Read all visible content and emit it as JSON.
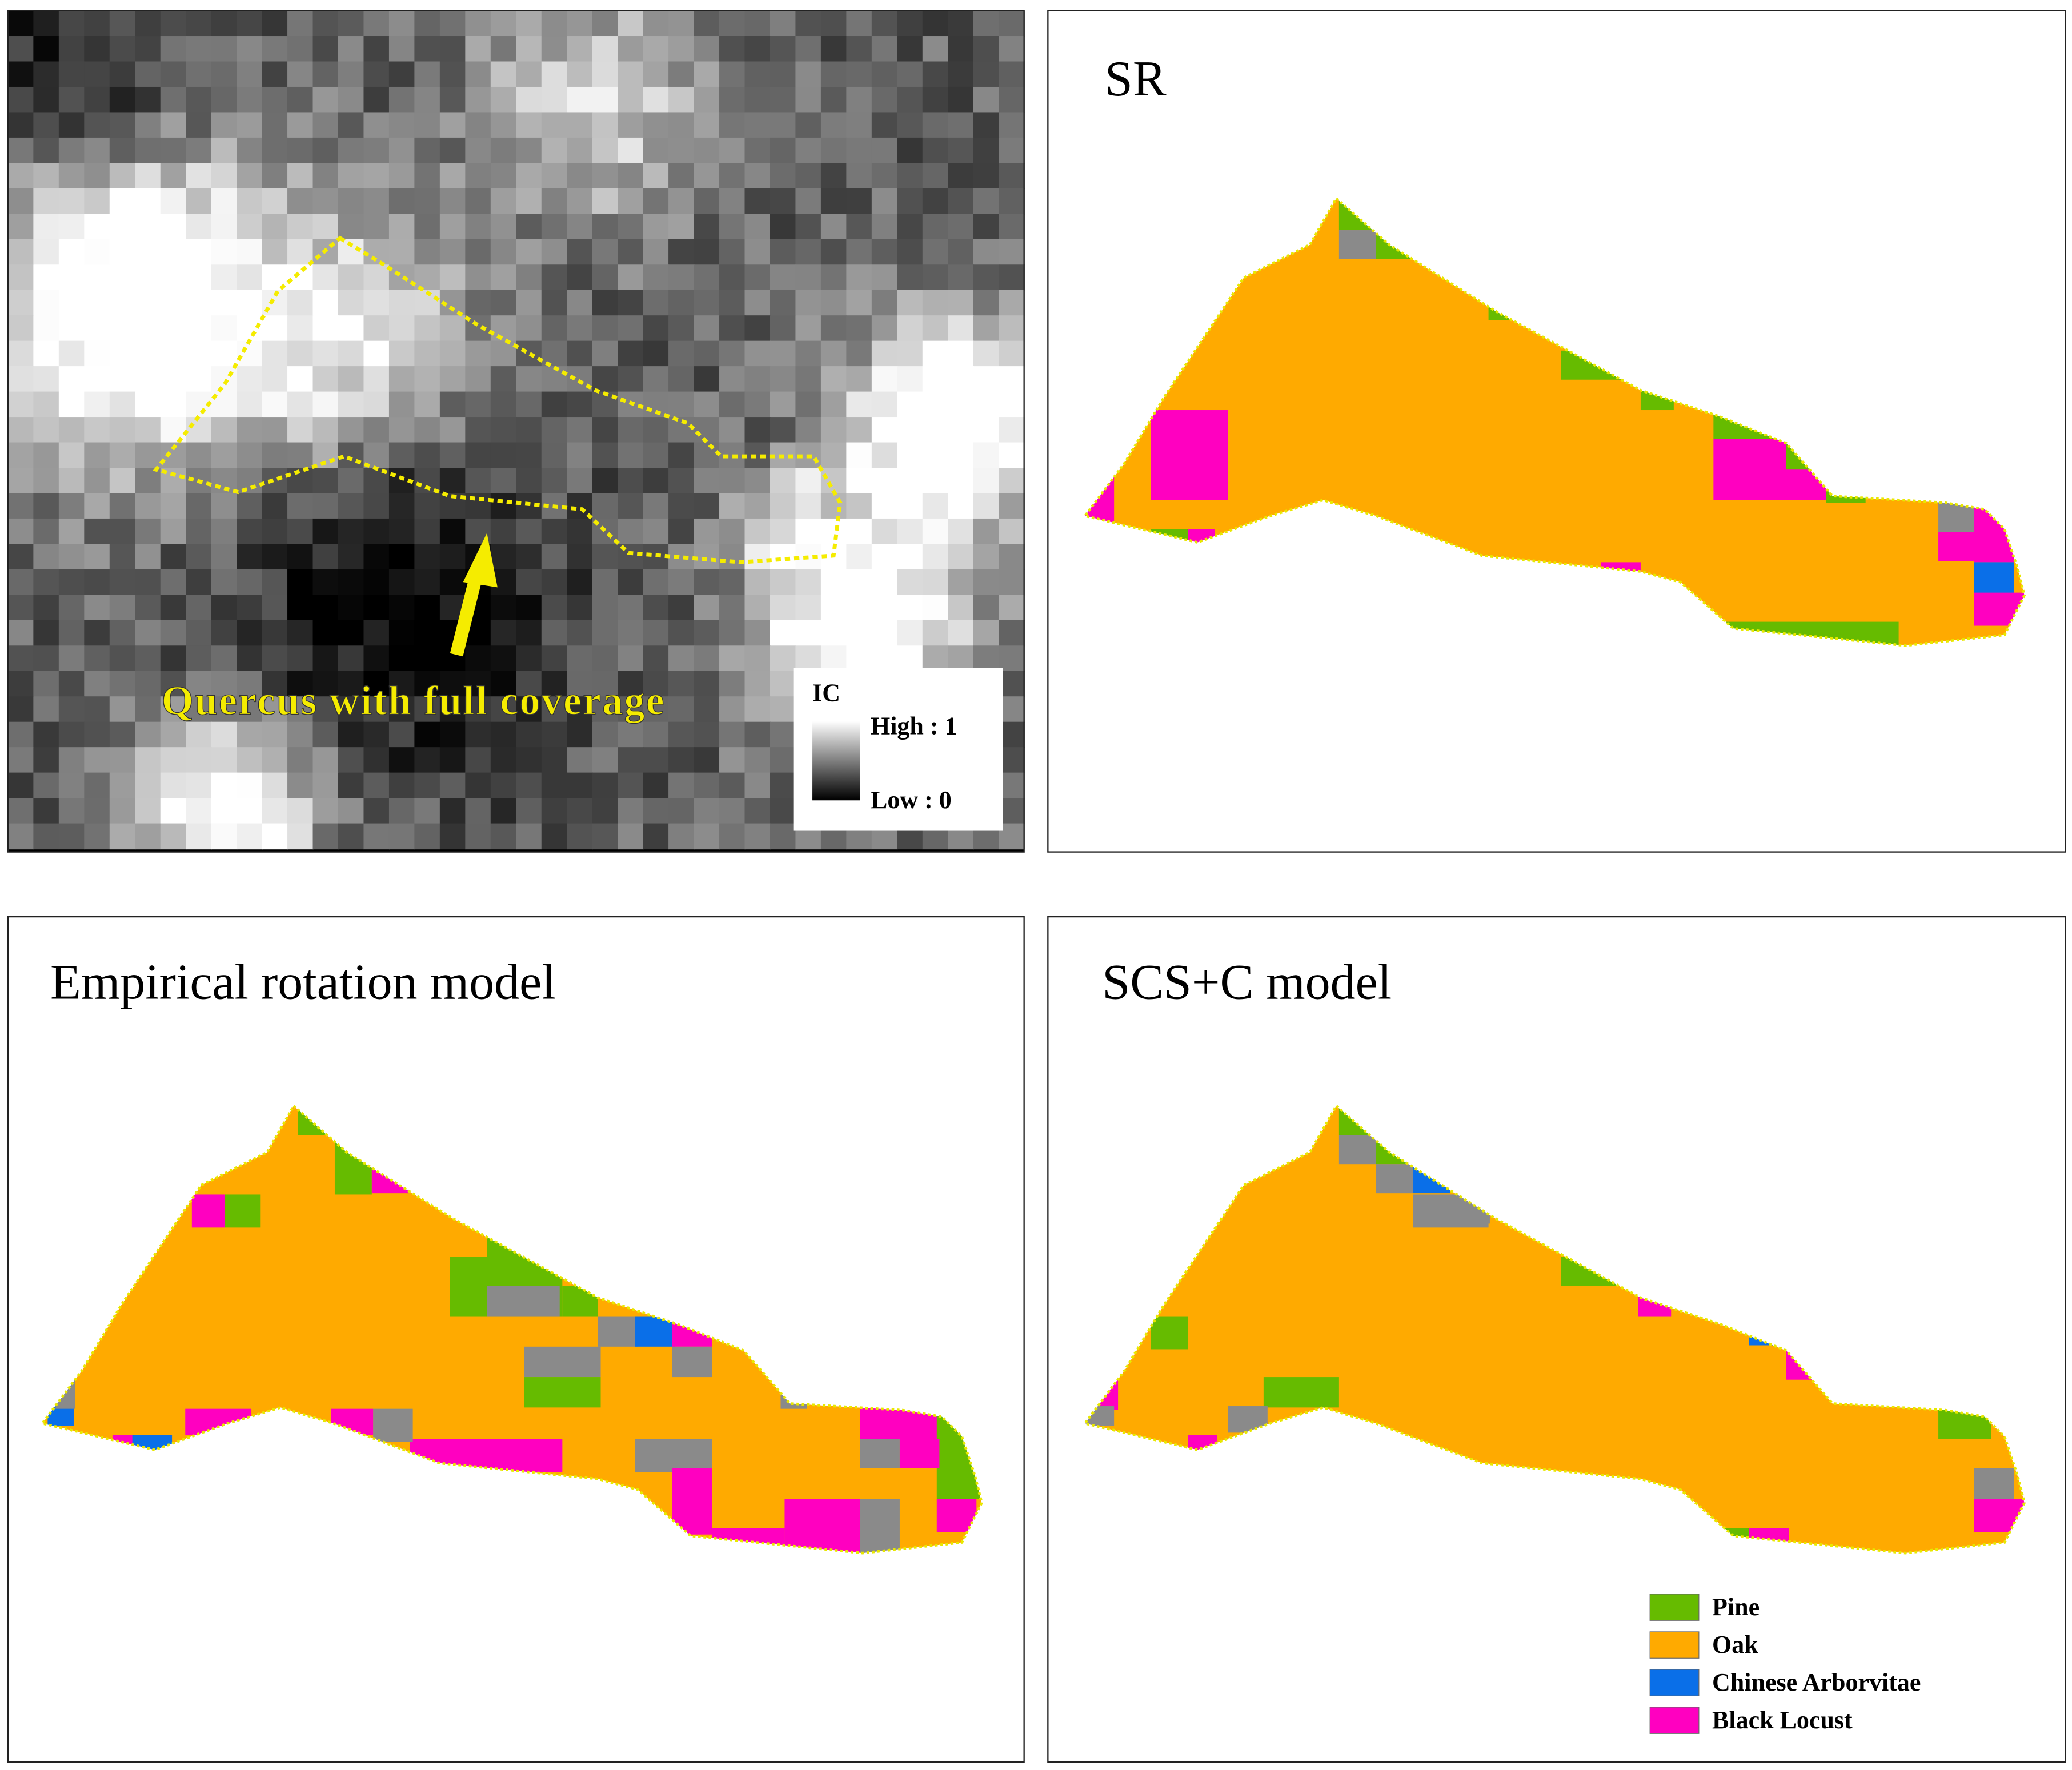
{
  "image_panel": {
    "annotation": "Quercus with full coverage",
    "legend": {
      "title": "IC",
      "high": "High : 1",
      "low": "Low : 0"
    }
  },
  "map_panels": [
    {
      "title": "SR"
    },
    {
      "title": "Empirical rotation model"
    },
    {
      "title": "SCS+C model"
    }
  ],
  "class_legend": [
    {
      "name": "Pine",
      "color": "#66bb00"
    },
    {
      "name": "Oak",
      "color": "#ffaa00"
    },
    {
      "name": "Chinese Arborvitae",
      "color": "#0a6fe8"
    },
    {
      "name": "Black Locust",
      "color": "#ff00c0"
    }
  ]
}
